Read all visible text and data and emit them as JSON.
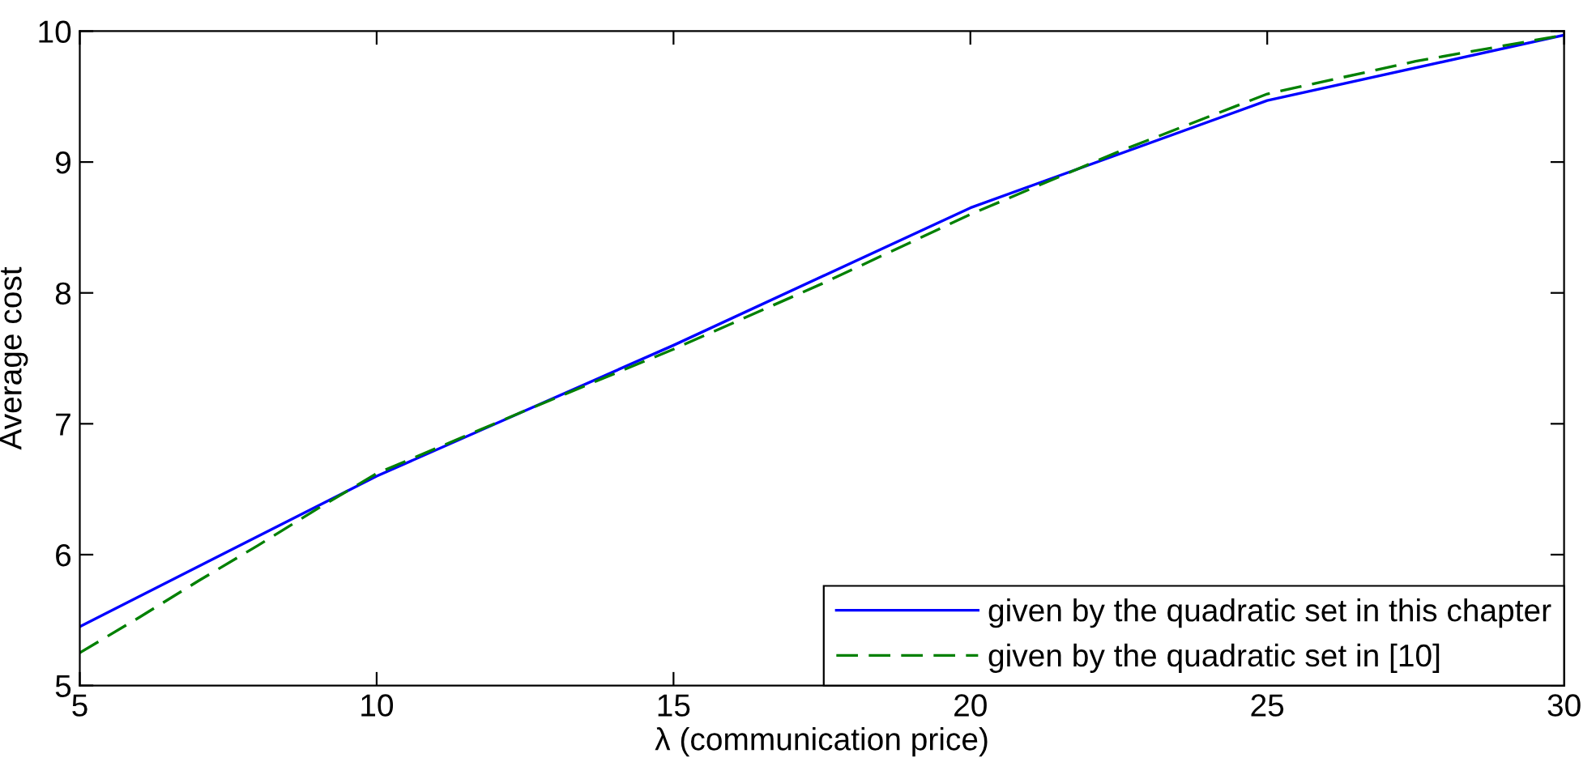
{
  "chart_data": {
    "type": "line",
    "xlabel": "λ (communication price)",
    "ylabel": "Average cost",
    "xlim": [
      5,
      30
    ],
    "ylim": [
      5,
      10
    ],
    "xticks": [
      5,
      10,
      15,
      20,
      25,
      30
    ],
    "yticks": [
      5,
      6,
      7,
      8,
      9,
      10
    ],
    "grid": false,
    "legend": "bottom right",
    "series": [
      {
        "name": "given by the quadratic set in this chapter",
        "color": "#0000ff",
        "line_style": "solid",
        "x": [
          5,
          10,
          15,
          20,
          25,
          30
        ],
        "values": [
          5.45,
          6.6,
          7.6,
          8.65,
          9.47,
          9.97
        ]
      },
      {
        "name": "given by the quadratic set in [10]",
        "color": "#008000",
        "line_style": "dashed",
        "x": [
          5,
          6,
          7,
          8,
          9,
          10,
          12.5,
          15,
          17.5,
          20,
          22.5,
          25,
          27.5,
          30
        ],
        "values": [
          5.25,
          5.52,
          5.8,
          6.07,
          6.35,
          6.62,
          7.1,
          7.57,
          8.07,
          8.6,
          9.08,
          9.52,
          9.77,
          9.97
        ]
      }
    ]
  }
}
